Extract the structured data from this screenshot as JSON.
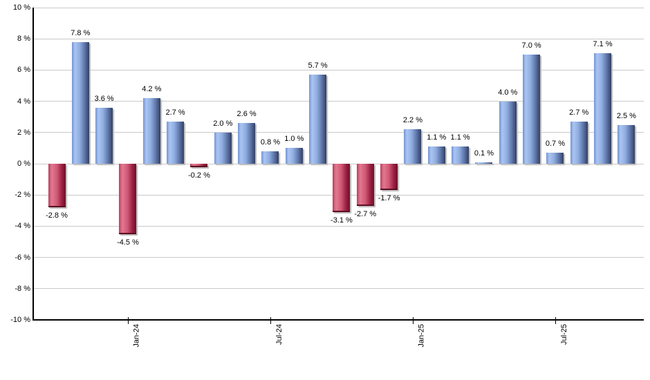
{
  "chart_data": {
    "type": "bar",
    "title": "",
    "xlabel": "",
    "ylabel": "",
    "grid": true,
    "legend": false,
    "y_axis": {
      "min": -10,
      "max": 10,
      "step": 2,
      "tick_suffix": " %"
    },
    "values": [
      -2.8,
      7.8,
      3.6,
      -4.5,
      4.2,
      2.7,
      -0.2,
      2.0,
      2.6,
      0.8,
      1.0,
      5.7,
      -3.1,
      -2.7,
      -1.7,
      2.2,
      1.1,
      1.1,
      0.1,
      4.0,
      7.0,
      0.7,
      2.7,
      7.1,
      2.5
    ],
    "label_format": "{value} %",
    "x_ticks": [
      {
        "label": "Jan-24",
        "bar_index": 3
      },
      {
        "label": "Jul-24",
        "bar_index": 9
      },
      {
        "label": "Jan-25",
        "bar_index": 15
      },
      {
        "label": "Jul-25",
        "bar_index": 21
      }
    ],
    "colors": {
      "positive_gradient": [
        "#7494d3",
        "#abc5f2",
        "#8fade0",
        "#5c73a6",
        "#323f62"
      ],
      "negative_gradient": [
        "#b84061",
        "#e3788f",
        "#cf5876",
        "#9a2041",
        "#6f0e28"
      ],
      "grid": "#c9c9c9",
      "axis": "#000000",
      "text": "#000000",
      "shadow": "#b9b9b9",
      "background": "#ffffff"
    }
  }
}
